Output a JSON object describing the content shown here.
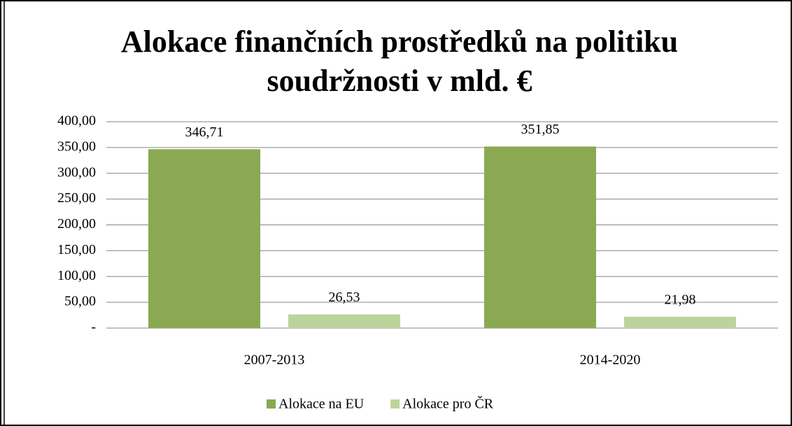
{
  "chart_data": {
    "type": "bar",
    "title": "Alokace finančních prostředků na politiku soudržnosti v mld. €",
    "categories": [
      "2007-2013",
      "2014-2020"
    ],
    "series": [
      {
        "name": "Alokace na EU",
        "color": "#8aa952",
        "values": [
          346.71,
          351.85
        ],
        "value_labels": [
          "346,71",
          "351,85"
        ]
      },
      {
        "name": "Alokace pro ČR",
        "color": "#bcd49b",
        "values": [
          26.53,
          21.98
        ],
        "value_labels": [
          "26,53",
          "21,98"
        ]
      }
    ],
    "ylim": [
      0,
      400
    ],
    "yticks": [
      {
        "value": 0,
        "label": "-"
      },
      {
        "value": 50,
        "label": "50,00"
      },
      {
        "value": 100,
        "label": "100,00"
      },
      {
        "value": 150,
        "label": "150,00"
      },
      {
        "value": 200,
        "label": "200,00"
      },
      {
        "value": 250,
        "label": "250,00"
      },
      {
        "value": 300,
        "label": "300,00"
      },
      {
        "value": 350,
        "label": "350,00"
      },
      {
        "value": 400,
        "label": "400,00"
      }
    ],
    "grid": true,
    "legend": "bottom"
  }
}
